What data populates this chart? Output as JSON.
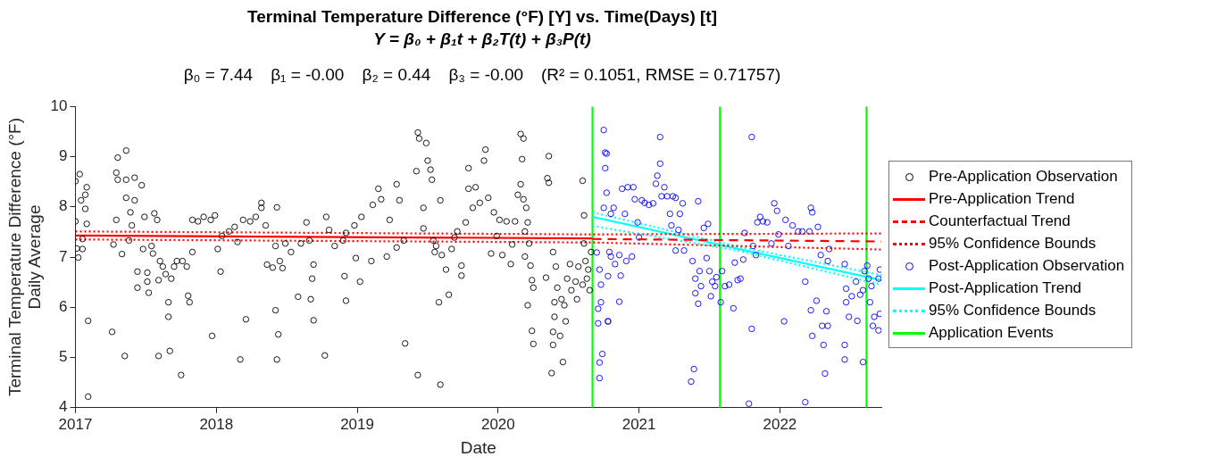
{
  "chart_data": {
    "type": "scatter",
    "title": "Terminal Temperature Difference (°F) [Y] vs. Time(Days) [t]",
    "subtitle": "Y = β₀ + β₁t + β₂T(t) + β₃P(t)",
    "annotations": [
      "β₀ = 7.44",
      "β₁ = -0.00",
      "β₂ = 0.44",
      "β₃ = -0.00",
      "(R² = 0.1051, RMSE = 0.71757)"
    ],
    "xlabel": "Date",
    "ylabel": "Terminal Temperature Difference (°F)\nDaily Average",
    "xlim": [
      2017,
      2022.72
    ],
    "xticks": [
      2017,
      2018,
      2019,
      2020,
      2021,
      2022
    ],
    "ylim": [
      4,
      10
    ],
    "yticks": [
      4,
      5,
      6,
      7,
      8,
      9,
      10
    ],
    "legend": "right",
    "series": [
      {
        "name": "Pre-Application Observation",
        "marker": "circle",
        "color": "#000000",
        "x": [
          2017.0,
          2017.03,
          2017.04,
          2017.0,
          2017.01,
          2017.05,
          2017.07,
          2017.07,
          2017.08,
          2017.09,
          2017.09,
          2017.02,
          2017.08,
          2017.05,
          2017.26,
          2017.27,
          2017.29,
          2017.3,
          2017.3,
          2017.29,
          2017.33,
          2017.35,
          2017.36,
          2017.36,
          2017.36,
          2017.39,
          2017.42,
          2017.42,
          2017.4,
          2017.38,
          2017.44,
          2017.44,
          2017.47,
          2017.48,
          2017.49,
          2017.51,
          2017.52,
          2017.51,
          2017.54,
          2017.56,
          2017.58,
          2017.55,
          2017.59,
          2017.59,
          2017.6,
          2017.62,
          2017.64,
          2017.66,
          2017.66,
          2017.67,
          2017.68,
          2017.7,
          2017.72,
          2017.75,
          2017.76,
          2017.79,
          2017.8,
          2017.81,
          2017.83,
          2017.83,
          2017.87,
          2017.91,
          2017.96,
          2017.97,
          2017.99,
          2018.01,
          2018.03,
          2018.04,
          2018.09,
          2018.13,
          2018.15,
          2018.17,
          2018.19,
          2018.21,
          2018.24,
          2018.28,
          2018.32,
          2018.32,
          2018.35,
          2018.36,
          2018.4,
          2018.42,
          2018.42,
          2018.43,
          2018.44,
          2018.43,
          2018.45,
          2018.47,
          2018.49,
          2018.53,
          2018.58,
          2018.6,
          2018.64,
          2018.67,
          2018.68,
          2018.69,
          2018.69,
          2018.66,
          2018.77,
          2018.78,
          2018.8,
          2018.84,
          2018.9,
          2018.91,
          2018.92,
          2018.92,
          2018.98,
          2019.02,
          2019.03,
          2018.99,
          2019.1,
          2019.11,
          2019.15,
          2019.17,
          2019.21,
          2019.23,
          2019.28,
          2019.3,
          2019.34,
          2019.33,
          2019.28,
          2019.43,
          2019.44,
          2019.42,
          2019.43,
          2019.47,
          2019.47,
          2019.49,
          2019.5,
          2019.52,
          2019.53,
          2019.54,
          2019.55,
          2019.56,
          2019.58,
          2019.59,
          2019.59,
          2019.6,
          2019.63,
          2019.65,
          2019.67,
          2019.69,
          2019.71,
          2019.74,
          2019.74,
          2019.77,
          2019.79,
          2019.79,
          2019.82,
          2019.84,
          2019.87,
          2019.91,
          2019.9,
          2019.93,
          2019.95,
          2019.97,
          2019.99,
          2020.01,
          2020.03,
          2020.06,
          2020.1,
          2020.09,
          2020.12,
          2020.16,
          2020.18,
          2020.14,
          2020.16,
          2020.17,
          2020.18,
          2020.2,
          2020.19,
          2020.21,
          2020.22,
          2020.19,
          2020.23,
          2020.24,
          2020.25,
          2020.21,
          2020.24,
          2020.25,
          2020.34,
          2020.35,
          2020.36,
          2020.36,
          2020.39,
          2020.4,
          2020.4,
          2020.41,
          2020.39,
          2020.39,
          2020.38,
          2020.42,
          2020.44,
          2020.46,
          2020.45,
          2020.47,
          2020.48,
          2020.49,
          2020.51,
          2020.52,
          2020.55,
          2020.56,
          2020.57,
          2020.6,
          2020.6,
          2020.61,
          2020.61,
          2020.62,
          2020.63,
          2020.64,
          2020.65,
          2020.66
        ],
        "values": [
          8.51,
          8.65,
          8.13,
          7.71,
          7.17,
          7.16,
          7.96,
          8.24,
          8.39,
          5.73,
          4.22,
          6.99,
          7.66,
          7.36,
          5.51,
          7.25,
          8.68,
          8.98,
          8.54,
          7.74,
          7.06,
          5.03,
          9.12,
          8.54,
          8.18,
          7.89,
          8.58,
          8.13,
          7.63,
          7.33,
          6.39,
          6.71,
          8.43,
          7.16,
          7.8,
          6.69,
          6.29,
          6.51,
          7.22,
          7.87,
          7.74,
          7.07,
          5.03,
          6.54,
          6.92,
          6.81,
          6.66,
          6.1,
          5.81,
          5.13,
          6.57,
          6.81,
          6.92,
          4.65,
          6.92,
          6.81,
          6.23,
          6.1,
          7.74,
          7.1,
          7.71,
          7.8,
          7.74,
          5.43,
          7.83,
          7.16,
          6.71,
          7.42,
          7.51,
          7.6,
          7.3,
          4.96,
          7.74,
          5.76,
          7.71,
          7.8,
          8.08,
          7.98,
          7.63,
          6.85,
          6.79,
          7.22,
          5.94,
          7.99,
          5.46,
          4.96,
          6.92,
          6.78,
          7.27,
          7.1,
          6.21,
          7.27,
          7.69,
          6.16,
          6.57,
          5.74,
          6.85,
          7.33,
          5.04,
          7.8,
          7.54,
          7.22,
          7.33,
          6.62,
          6.13,
          7.48,
          7.63,
          6.51,
          7.8,
          6.98,
          6.92,
          8.04,
          8.36,
          8.15,
          7.01,
          7.74,
          8.45,
          8.13,
          5.28,
          7.33,
          7.19,
          9.48,
          9.36,
          8.71,
          4.65,
          7.57,
          7.98,
          9.27,
          8.92,
          8.74,
          8.54,
          7.33,
          7.1,
          7.22,
          6.1,
          4.46,
          8.13,
          7.04,
          6.75,
          6.25,
          7.16,
          7.39,
          7.51,
          6.63,
          6.83,
          7.69,
          8.77,
          8.36,
          7.98,
          8.39,
          8.08,
          9.14,
          8.92,
          8.18,
          7.07,
          7.89,
          7.42,
          7.74,
          7.04,
          7.71,
          7.25,
          6.86,
          7.71,
          9.45,
          9.36,
          8.24,
          8.45,
          8.95,
          8.15,
          7.98,
          7.51,
          7.69,
          7.27,
          7.01,
          6.83,
          6.54,
          6.39,
          6.04,
          5.53,
          5.27,
          6.59,
          8.57,
          9.01,
          8.48,
          7.1,
          6.1,
          5.81,
          6.81,
          5.51,
          5.25,
          4.69,
          6.39,
          5.43,
          4.91,
          6.16,
          6.04,
          5.72,
          6.57,
          6.86,
          6.34,
          6.51,
          6.16,
          6.81,
          8.52,
          6.45,
          7.83,
          7.27,
          6.92,
          6.57,
          6.75,
          6.34,
          7.1
        ]
      },
      {
        "name": "Pre-Application Trend",
        "type": "line",
        "line_style": "solid",
        "color": "#ff0000",
        "x": [
          2017,
          2020.67
        ],
        "values": [
          7.43,
          7.37
        ]
      },
      {
        "name": "Counterfactual Trend",
        "type": "line",
        "line_style": "dashed",
        "color": "#ff0000",
        "x": [
          2020.67,
          2022.72
        ],
        "values": [
          7.36,
          7.31
        ]
      },
      {
        "name": "95% Confidence Bounds",
        "type": "line",
        "line_style": "dotted",
        "color": "#ff0000",
        "x": [
          2017,
          2020.67,
          2022.72
        ],
        "values": [
          7.51,
          7.45,
          7.47
        ]
      },
      {
        "type": "line",
        "line_style": "dotted",
        "color": "#ff0000",
        "x": [
          2017,
          2020.67,
          2022.72
        ],
        "values": [
          7.35,
          7.29,
          7.15
        ]
      },
      {
        "name": "Post-Application Observation",
        "marker": "circle",
        "color": "#0000ff",
        "x": [
          2020.75,
          2020.76,
          2020.76,
          2020.77,
          2020.75,
          2020.7,
          2020.72,
          2020.73,
          2020.73,
          2020.71,
          2020.71,
          2020.78,
          2020.74,
          2020.72,
          2020.72,
          2020.78,
          2020.8,
          2020.77,
          2020.78,
          2020.79,
          2020.8,
          2020.82,
          2020.83,
          2020.86,
          2020.86,
          2020.88,
          2020.87,
          2020.9,
          2020.91,
          2020.92,
          2020.95,
          2020.96,
          2020.97,
          2020.99,
          2021.0,
          2021.02,
          2021.04,
          2021.07,
          2021.1,
          2021.12,
          2021.13,
          2021.15,
          2021.15,
          2021.16,
          2021.18,
          2021.2,
          2021.22,
          2021.23,
          2021.24,
          2021.26,
          2021.26,
          2021.28,
          2021.29,
          2021.31,
          2021.32,
          2021.37,
          2021.38,
          2021.39,
          2021.4,
          2021.4,
          2021.42,
          2021.43,
          2021.42,
          2021.44,
          2021.46,
          2021.48,
          2021.49,
          2021.5,
          2021.51,
          2021.52,
          2021.54,
          2021.55,
          2021.58,
          2021.59,
          2021.61,
          2021.64,
          2021.67,
          2021.68,
          2021.7,
          2021.72,
          2021.74,
          2021.75,
          2021.78,
          2021.8,
          2021.8,
          2021.81,
          2021.83,
          2021.84,
          2021.86,
          2021.88,
          2021.91,
          2021.94,
          2021.96,
          2021.98,
          2021.99,
          2022.03,
          2022.04,
          2022.06,
          2022.09,
          2022.13,
          2022.16,
          2022.18,
          2022.18,
          2022.21,
          2022.22,
          2022.22,
          2022.23,
          2022.23,
          2022.26,
          2022.27,
          2022.29,
          2022.3,
          2022.31,
          2022.32,
          2022.33,
          2022.34,
          2022.34,
          2022.35,
          2022.46,
          2022.46,
          2022.46,
          2022.47,
          2022.47,
          2022.49,
          2022.51,
          2022.54,
          2022.55,
          2022.57,
          2022.59,
          2022.59,
          2022.6,
          2022.62,
          2022.63,
          2022.64,
          2022.65,
          2022.66,
          2022.67,
          2022.7,
          2022.7,
          2022.71,
          2022.71
        ],
        "values": [
          9.53,
          9.08,
          8.77,
          8.28,
          7.98,
          7.09,
          6.75,
          6.45,
          6.1,
          5.97,
          5.68,
          5.72,
          5.07,
          4.9,
          4.59,
          6.62,
          7.01,
          9.06,
          5.72,
          7.1,
          7.86,
          7.98,
          6.86,
          6.11,
          7.04,
          8.36,
          6.63,
          7.86,
          6.92,
          8.39,
          7.01,
          8.39,
          8.15,
          7.69,
          7.39,
          8.13,
          8.08,
          8.04,
          8.07,
          8.46,
          8.62,
          9.39,
          8.86,
          8.21,
          8.39,
          8.21,
          7.86,
          7.63,
          8.21,
          8.18,
          7.13,
          7.54,
          7.86,
          8.07,
          7.13,
          4.52,
          6.92,
          4.77,
          6.57,
          6.28,
          8.11,
          6.72,
          6.07,
          6.42,
          7.58,
          6.98,
          7.66,
          6.72,
          6.22,
          6.51,
          6.42,
          6.6,
          6.1,
          6.72,
          6.42,
          6.45,
          5.98,
          6.89,
          6.54,
          6.57,
          6.95,
          7.48,
          4.08,
          9.39,
          5.57,
          7.22,
          7.04,
          7.69,
          7.8,
          7.71,
          7.69,
          7.27,
          8.07,
          7.92,
          7.45,
          5.72,
          7.74,
          7.22,
          7.63,
          7.51,
          7.51,
          6.51,
          4.11,
          7.51,
          5.94,
          7.98,
          7.89,
          5.43,
          6.13,
          7.6,
          7.04,
          5.63,
          5.25,
          4.68,
          5.92,
          6.92,
          5.63,
          7.16,
          6.86,
          5.25,
          4.96,
          6.37,
          6.1,
          5.81,
          6.22,
          6.51,
          5.73,
          6.25,
          6.34,
          4.91,
          6.72,
          6.83,
          6.57,
          6.1,
          6.42,
          5.63,
          5.81,
          5.54,
          6.57,
          5.87,
          6.75
        ]
      },
      {
        "name": "Post-Application Trend",
        "type": "line",
        "line_style": "solid",
        "color": "#00ffff",
        "x": [
          2020.67,
          2022.72
        ],
        "values": [
          7.8,
          6.54
        ]
      },
      {
        "name": "95% Confidence Bounds",
        "type": "line",
        "line_style": "dotted",
        "color": "#00ffff",
        "x": [
          2020.67,
          2021.7,
          2022.72
        ],
        "values": [
          7.89,
          7.21,
          6.64
        ]
      },
      {
        "type": "line",
        "line_style": "dotted",
        "color": "#00ffff",
        "x": [
          2020.67,
          2021.7,
          2022.72
        ],
        "values": [
          7.62,
          7.13,
          6.45
        ]
      },
      {
        "name": "Application Events",
        "type": "line",
        "line_style": "solid",
        "color": "#00ff00",
        "x": [
          2020.67,
          2020.67
        ],
        "values": [
          4,
          10
        ]
      },
      {
        "type": "line",
        "line_style": "solid",
        "color": "#00ff00",
        "x": [
          2021.575,
          2021.575
        ],
        "values": [
          4,
          10
        ]
      },
      {
        "type": "line",
        "line_style": "solid",
        "color": "#00ff00",
        "x": [
          2022.615,
          2022.615
        ],
        "values": [
          4,
          10
        ]
      }
    ]
  }
}
